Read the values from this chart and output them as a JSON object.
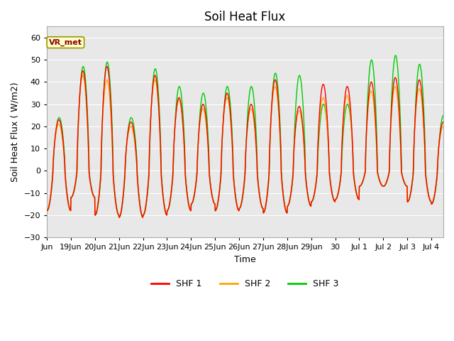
{
  "title": "Soil Heat Flux",
  "xlabel": "Time",
  "ylabel": "Soil Heat Flux ( W/m2)",
  "ylim": [
    -30,
    65
  ],
  "yticks": [
    -30,
    -20,
    -10,
    0,
    10,
    20,
    30,
    40,
    50,
    60
  ],
  "colors": {
    "SHF 1": "#ff0000",
    "SHF 2": "#ffa500",
    "SHF 3": "#00cc00"
  },
  "annotation_text": "VR_met",
  "annotation_box_color": "#ffffcc",
  "annotation_box_edge": "#999900",
  "fig_bg_color": "#ffffff",
  "plot_bg_color": "#e8e8e8",
  "grid_color": "#ffffff",
  "title_fontsize": 12,
  "label_fontsize": 9,
  "tick_fontsize": 8,
  "line_width": 1.0,
  "start_day": 18.0,
  "end_day": 34.5,
  "n_points": 1600,
  "tick_positions": [
    18,
    19,
    20,
    21,
    22,
    23,
    24,
    25,
    26,
    27,
    28,
    29,
    30,
    31,
    32,
    33,
    34
  ],
  "tick_labels": [
    "Jun",
    "19Jun",
    "20Jun",
    "21Jun",
    "22Jun",
    "23Jun",
    "24Jun",
    "25Jun",
    "26Jun",
    "27Jun",
    "28Jun",
    "29Jun",
    "30",
    "Jul 1",
    "Jul 2",
    "Jul 3",
    "Jul 4"
  ],
  "day_peaks_shf1": [
    23,
    45,
    47,
    22,
    43,
    33,
    30,
    35,
    30,
    41,
    29,
    39,
    38,
    40,
    42,
    41,
    22
  ],
  "day_peaks_shf2": [
    21,
    43,
    41,
    20,
    41,
    32,
    28,
    33,
    28,
    38,
    27,
    33,
    34,
    36,
    38,
    37,
    20
  ],
  "day_peaks_shf3": [
    24,
    47,
    49,
    24,
    46,
    38,
    35,
    38,
    38,
    44,
    43,
    30,
    30,
    50,
    52,
    48,
    25
  ],
  "day_troughs": [
    -18,
    -12,
    -20,
    -21,
    -20,
    -18,
    -15,
    -18,
    -17,
    -19,
    -16,
    -14,
    -13,
    -7,
    -7,
    -14,
    -15
  ]
}
